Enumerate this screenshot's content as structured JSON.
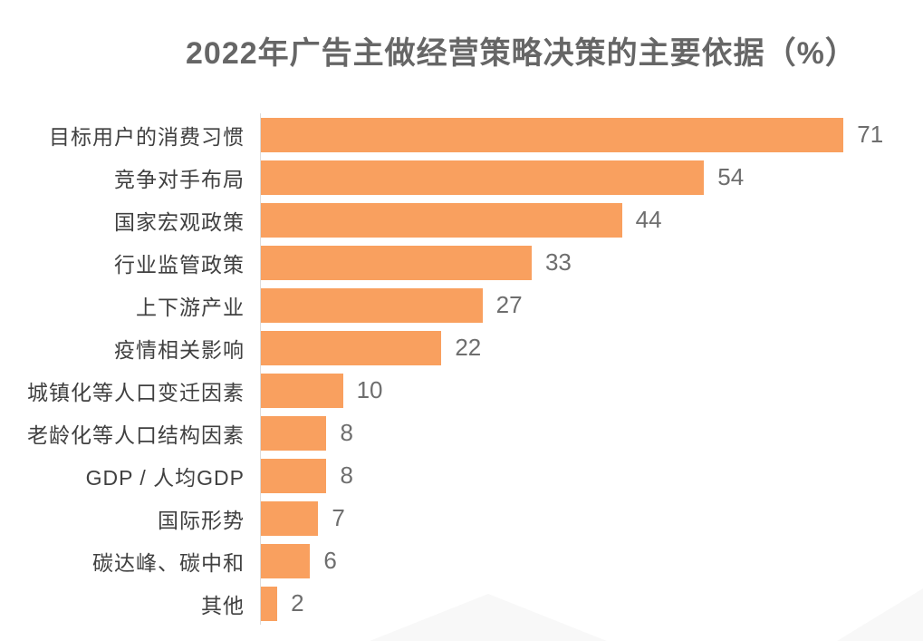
{
  "chart_data": {
    "type": "bar",
    "orientation": "horizontal",
    "title": "2022年广告主做经营策略决策的主要依据（%）",
    "categories": [
      "目标用户的消费习惯",
      "竞争对手布局",
      "国家宏观政策",
      "行业监管政策",
      "上下游产业",
      "疫情相关影响",
      "城镇化等人口变迁因素",
      "老龄化等人口结构因素",
      "GDP / 人均GDP",
      "国际形势",
      "碳达峰、碳中和",
      "其他"
    ],
    "values": [
      71,
      54,
      44,
      33,
      27,
      22,
      10,
      8,
      8,
      7,
      6,
      2
    ],
    "xlim": [
      0,
      75
    ],
    "grid": false,
    "legend": null,
    "value_labels_shown": true,
    "colors": {
      "bar": "#F9A05F",
      "axis_line": "#DCDCDC",
      "title_text": "#666666",
      "category_text": "#404040",
      "value_text": "#6E6E6E",
      "background": "#FFFFFF"
    }
  }
}
